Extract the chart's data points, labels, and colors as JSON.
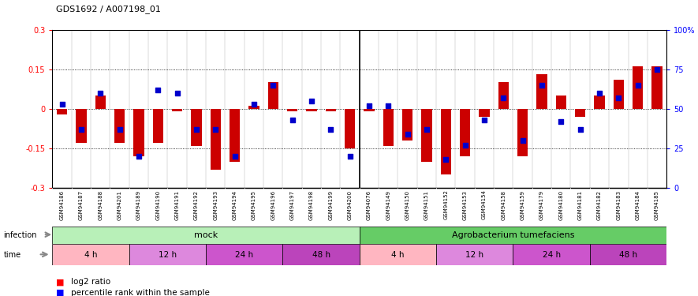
{
  "title": "GDS1692 / A007198_01",
  "samples": [
    "GSM94186",
    "GSM94187",
    "GSM94188",
    "GSM94201",
    "GSM94189",
    "GSM94190",
    "GSM94191",
    "GSM94192",
    "GSM94193",
    "GSM94194",
    "GSM94195",
    "GSM94196",
    "GSM94197",
    "GSM94198",
    "GSM94199",
    "GSM94200",
    "GSM94076",
    "GSM94149",
    "GSM94150",
    "GSM94151",
    "GSM94152",
    "GSM94153",
    "GSM94154",
    "GSM94158",
    "GSM94159",
    "GSM94179",
    "GSM94180",
    "GSM94181",
    "GSM94182",
    "GSM94183",
    "GSM94184",
    "GSM94185"
  ],
  "log2_ratio": [
    -0.02,
    -0.13,
    0.05,
    -0.13,
    -0.18,
    -0.13,
    -0.01,
    -0.14,
    -0.23,
    -0.2,
    0.01,
    0.1,
    -0.01,
    -0.01,
    -0.01,
    -0.15,
    -0.01,
    -0.14,
    -0.12,
    -0.2,
    -0.25,
    -0.18,
    -0.03,
    0.1,
    -0.18,
    0.13,
    0.05,
    -0.03,
    0.05,
    0.11,
    0.16,
    0.16
  ],
  "percentile_rank": [
    53,
    37,
    60,
    37,
    20,
    62,
    60,
    37,
    37,
    20,
    53,
    65,
    43,
    55,
    37,
    20,
    52,
    52,
    34,
    37,
    18,
    27,
    43,
    57,
    30,
    65,
    42,
    37,
    60,
    57,
    65,
    75
  ],
  "time_groups": [
    {
      "label": "4 h",
      "start": 0,
      "end": 4,
      "color": "#FFB6C1"
    },
    {
      "label": "12 h",
      "start": 4,
      "end": 8,
      "color": "#DD88DD"
    },
    {
      "label": "24 h",
      "start": 8,
      "end": 12,
      "color": "#CC66CC"
    },
    {
      "label": "48 h",
      "start": 12,
      "end": 16,
      "color": "#CC55CC"
    },
    {
      "label": "4 h",
      "start": 16,
      "end": 20,
      "color": "#FFB6C1"
    },
    {
      "label": "12 h",
      "start": 20,
      "end": 24,
      "color": "#DD88DD"
    },
    {
      "label": "24 h",
      "start": 24,
      "end": 28,
      "color": "#CC66CC"
    },
    {
      "label": "48 h",
      "start": 28,
      "end": 32,
      "color": "#CC55CC"
    }
  ],
  "ylim": [
    -0.3,
    0.3
  ],
  "bar_color": "#CC0000",
  "dot_color": "#0000CC",
  "fig_bg": "#ffffff",
  "plot_bg": "#ffffff",
  "xtick_bg": "#c8c8c8",
  "infection_mock_color": "#b8f0b8",
  "infection_agro_color": "#66cc66",
  "arrow_color": "#888888"
}
